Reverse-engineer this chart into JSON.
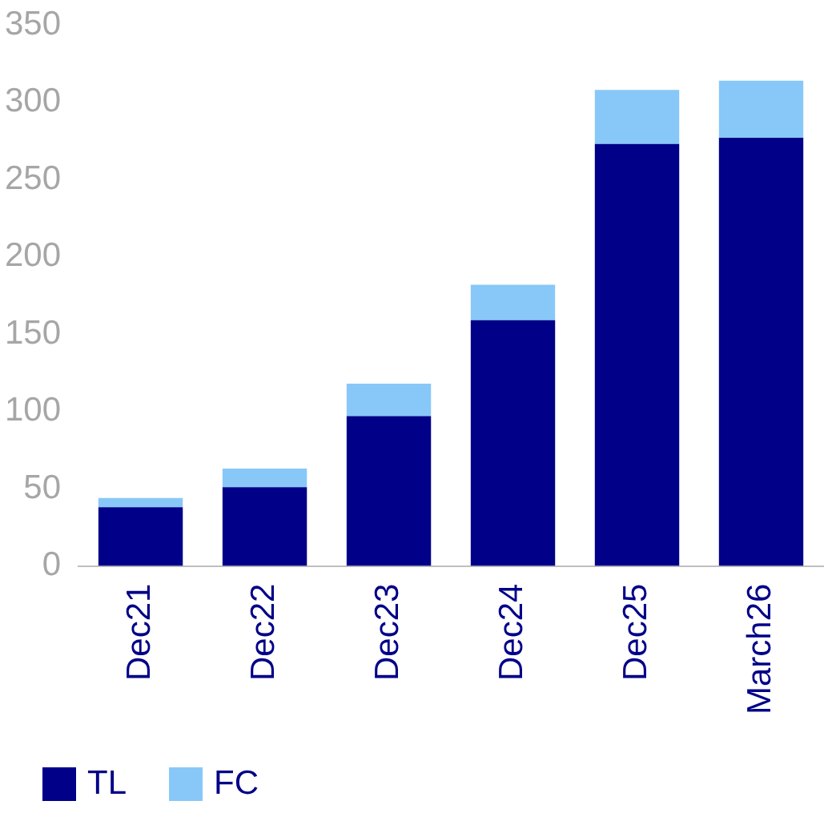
{
  "chart_data": {
    "type": "bar",
    "stacked": true,
    "categories": [
      "Dec21",
      "Dec22",
      "Dec23",
      "Dec24",
      "Dec25",
      "March26"
    ],
    "series": [
      {
        "name": "TL",
        "color": "#000088",
        "values": [
          38,
          51,
          97,
          159,
          273,
          277
        ]
      },
      {
        "name": "FC",
        "color": "#88c8f8",
        "values": [
          6,
          12,
          21,
          23,
          35,
          37
        ]
      }
    ],
    "ylim": [
      0,
      350
    ],
    "yticks": [
      0,
      50,
      100,
      150,
      200,
      250,
      300,
      350
    ],
    "grid": false,
    "legend": "bottom"
  }
}
